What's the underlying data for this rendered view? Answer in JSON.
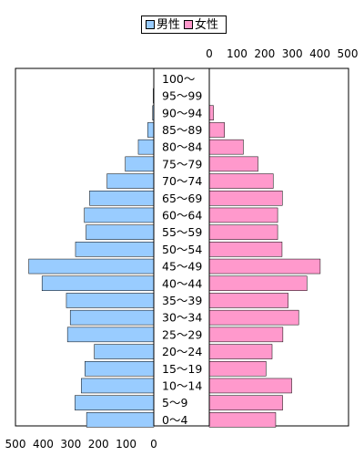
{
  "legend": {
    "male_label": "男性",
    "female_label": "女性"
  },
  "colors": {
    "male": "#99CCFF",
    "female": "#FF99CC",
    "outline": "#000000",
    "background": "#FFFFFF"
  },
  "chart_data": {
    "type": "bar",
    "orientation": "horizontal-pyramid",
    "categories": [
      "0～4",
      "5～9",
      "10～14",
      "15～19",
      "20～24",
      "25～29",
      "30～34",
      "35～39",
      "40～44",
      "45～49",
      "50～54",
      "55～59",
      "60～64",
      "65～69",
      "70～74",
      "75～79",
      "80～84",
      "85～89",
      "90～94",
      "95～99",
      "100～"
    ],
    "series": [
      {
        "name": "男性",
        "values": [
          243,
          285,
          262,
          249,
          215,
          312,
          302,
          316,
          404,
          452,
          283,
          245,
          251,
          232,
          169,
          103,
          56,
          22,
          4,
          2,
          0
        ]
      },
      {
        "name": "女性",
        "values": [
          240,
          265,
          298,
          205,
          227,
          266,
          323,
          285,
          353,
          401,
          263,
          247,
          247,
          264,
          231,
          176,
          123,
          55,
          15,
          0,
          0
        ]
      }
    ],
    "xlim": [
      0,
      500
    ],
    "bottom_axis_ticks": [
      "500",
      "400",
      "300",
      "200",
      "100",
      "0"
    ],
    "top_axis_ticks": [
      "0",
      "100",
      "200",
      "300",
      "400",
      "500"
    ],
    "grid": false,
    "legend_position": "top-center"
  }
}
